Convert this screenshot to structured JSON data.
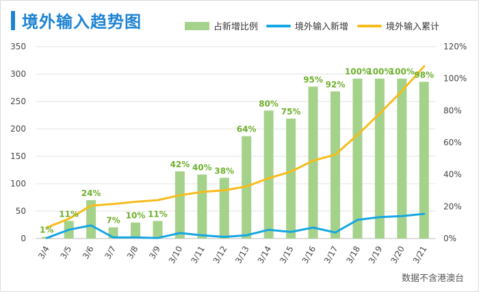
{
  "chart_data": {
    "type": "bar+line",
    "title": "境外输入趋势图",
    "note": "数据不含港澳台",
    "categories": [
      "3/4",
      "3/5",
      "3/6",
      "3/7",
      "3/8",
      "3/9",
      "3/10",
      "3/11",
      "3/12",
      "3/13",
      "3/14",
      "3/15",
      "3/16",
      "3/17",
      "3/18",
      "3/19",
      "3/20",
      "3/21"
    ],
    "series": [
      {
        "name": "占新增比例",
        "type": "bar",
        "axis": "right",
        "color": "#a5d28a",
        "values": [
          1,
          11,
          24,
          7,
          10,
          11,
          42,
          40,
          38,
          64,
          80,
          75,
          95,
          92,
          100,
          100,
          100,
          98
        ],
        "labels": [
          "1%",
          "11%",
          "24%",
          "7%",
          "10%",
          "11%",
          "42%",
          "40%",
          "38%",
          "64%",
          "80%",
          "75%",
          "95%",
          "92%",
          "100%",
          "100%",
          "100%",
          "98%"
        ]
      },
      {
        "name": "境外输入新增",
        "type": "line",
        "axis": "left",
        "color": "#15a6e3",
        "values": [
          1,
          16,
          24,
          2,
          2,
          1,
          10,
          6,
          3,
          6,
          16,
          12,
          20,
          11,
          34,
          39,
          41,
          45
        ]
      },
      {
        "name": "境外输入累计",
        "type": "line",
        "axis": "left",
        "color": "#f7bc1b",
        "values": [
          20,
          36,
          60,
          63,
          67,
          70,
          79,
          85,
          88,
          95,
          110,
          122,
          142,
          153,
          189,
          228,
          269,
          314
        ]
      }
    ],
    "y_left": {
      "min": 0,
      "max": 350,
      "ticks": [
        "0",
        "50",
        "100",
        "150",
        "200",
        "250",
        "300",
        "350"
      ]
    },
    "y_right": {
      "min": 0,
      "max": 120,
      "ticks": [
        "0%",
        "20%",
        "40%",
        "60%",
        "80%",
        "100%",
        "120%"
      ]
    },
    "grid": true,
    "legend": "top-right"
  }
}
